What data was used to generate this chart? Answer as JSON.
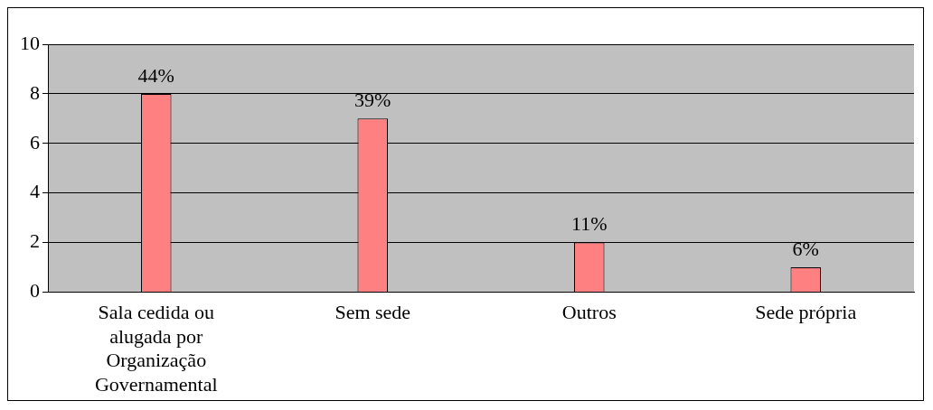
{
  "chart_data": {
    "type": "bar",
    "categories": [
      "Sala cedida ou alugada por Organização Governamental",
      "Sem sede",
      "Outros",
      "Sede própria"
    ],
    "values": [
      8,
      7,
      2,
      1
    ],
    "color": "#ff8080",
    "annotations": [
      {
        "text": "44%",
        "x": "Sala cedida ou alugada por Organização Governamental",
        "y": 8
      },
      {
        "text": "39%",
        "x": "Sem sede",
        "y": 7
      },
      {
        "text": "11%",
        "x": "Outros",
        "y": 2
      },
      {
        "text": "6%",
        "x": "Sede própria",
        "y": 1
      }
    ],
    "ylim": [
      0,
      10
    ],
    "yticks": [
      0,
      2,
      4,
      6,
      8,
      10
    ],
    "grid": "y",
    "legend": false
  }
}
